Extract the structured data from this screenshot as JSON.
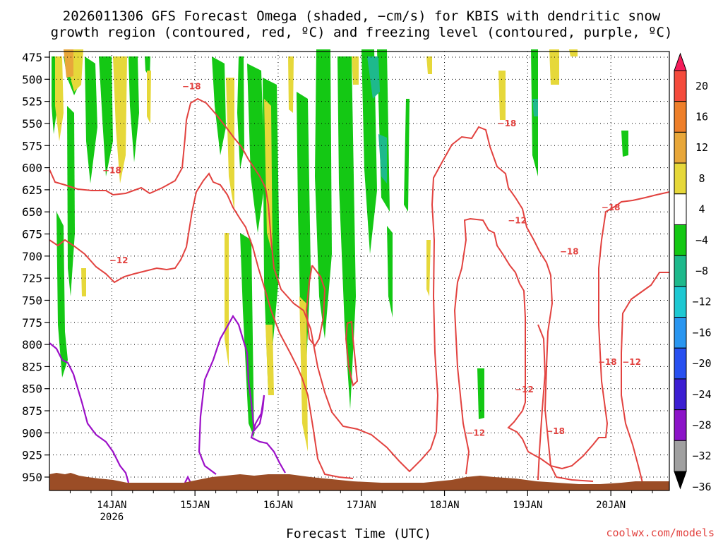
{
  "chart_data": {
    "type": "heatmap",
    "title_lines": [
      "2026011306 GFS Forecast Omega (shaded, −cm/s) for KBIS with dendritic snow",
      "growth region (contoured, red, ºC) and freezing level (contoured, purple, ºC)"
    ],
    "xlabel": "Forecast Time (UTC)",
    "credit": "coolwx.com/models",
    "y_axis": {
      "scale": "pressure",
      "range": [
        475,
        962
      ],
      "ticks": [
        "475",
        "500",
        "525",
        "550",
        "575",
        "600",
        "625",
        "650",
        "675",
        "700",
        "725",
        "750",
        "775",
        "800",
        "825",
        "850",
        "875",
        "900",
        "925",
        "950"
      ]
    },
    "x_axis": {
      "range": [
        "2026-01-13 06",
        "2026-01-20 18"
      ],
      "ticks": [
        {
          "label": "14JAN",
          "sub": "2026"
        },
        {
          "label": "15JAN",
          "sub": ""
        },
        {
          "label": "16JAN",
          "sub": ""
        },
        {
          "label": "17JAN",
          "sub": ""
        },
        {
          "label": "18JAN",
          "sub": ""
        },
        {
          "label": "19JAN",
          "sub": ""
        },
        {
          "label": "20JAN",
          "sub": ""
        }
      ]
    },
    "grid": true,
    "colorbar": {
      "labels": [
        "20",
        "16",
        "12",
        "8",
        "4",
        "−4",
        "−8",
        "−12",
        "−16",
        "−20",
        "−24",
        "−28",
        "−32",
        "−36"
      ],
      "colors": [
        "#f51c5a",
        "#f44b3c",
        "#ee7f2a",
        "#e8a73a",
        "#e6d83a",
        "#ffffff",
        "#14c814",
        "#1eb98c",
        "#1ec8d2",
        "#2a96f0",
        "#2850f0",
        "#3c1ed2",
        "#8c14c8",
        "#a0a0a0",
        "#000000"
      ]
    },
    "contour_labels": [
      {
        "text": "−18",
        "color": "#e2423f",
        "x": "2026-01-14 23",
        "p": 508
      },
      {
        "text": "−18",
        "color": "#e2423f",
        "x": "2026-01-14 00",
        "p": 603
      },
      {
        "text": "−12",
        "color": "#e2423f",
        "x": "2026-01-14 02",
        "p": 705
      },
      {
        "text": "−18",
        "color": "#e2423f",
        "x": "2026-01-18 18",
        "p": 550
      },
      {
        "text": "−12",
        "color": "#e2423f",
        "x": "2026-01-18 21",
        "p": 660
      },
      {
        "text": "−18",
        "color": "#e2423f",
        "x": "2026-01-19 12",
        "p": 695
      },
      {
        "text": "−18",
        "color": "#e2423f",
        "x": "2026-01-20 00",
        "p": 645
      },
      {
        "text": "−18",
        "color": "#e2423f",
        "x": "2026-01-19 23",
        "p": 820
      },
      {
        "text": "−12",
        "color": "#e2423f",
        "x": "2026-01-20 06",
        "p": 820
      },
      {
        "text": "−12",
        "color": "#e2423f",
        "x": "2026-01-18 23",
        "p": 851
      },
      {
        "text": "−18",
        "color": "#e2423f",
        "x": "2026-01-19 08",
        "p": 898
      },
      {
        "text": "−12",
        "color": "#e2423f",
        "x": "2026-01-18 09",
        "p": 900
      }
    ]
  }
}
